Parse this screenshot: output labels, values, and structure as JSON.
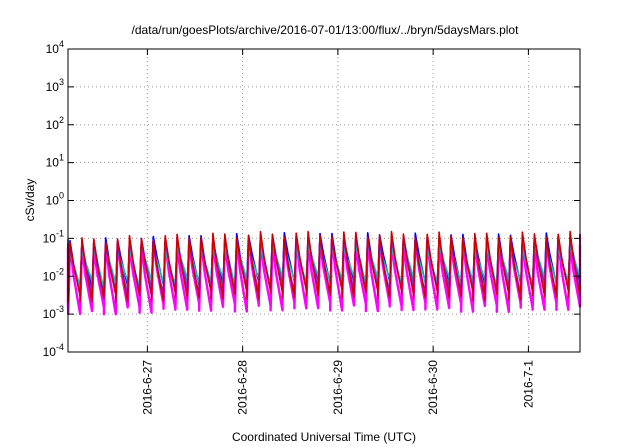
{
  "chart_data": {
    "type": "line",
    "title": "/data/run/goesPlots/archive/2016-07-01/13:00/flux/../bryn/5daysMars.plot",
    "xlabel": "Coordinated Universal Time (UTC)",
    "ylabel": "cSv/day",
    "yscale": "log",
    "ylim": [
      0.0001,
      10000
    ],
    "xlim": [
      "2016-06-26T04:00",
      "2016-07-01T13:00"
    ],
    "x_ticks": [
      "2016-6-27",
      "2016-6-28",
      "2016-6-29",
      "2016-6-30",
      "2016-7-1"
    ],
    "y_ticks": [
      {
        "base": "10",
        "exp": "-4"
      },
      {
        "base": "10",
        "exp": "-3"
      },
      {
        "base": "10",
        "exp": "-2"
      },
      {
        "base": "10",
        "exp": "-1"
      },
      {
        "base": "10",
        "exp": "0"
      },
      {
        "base": "10",
        "exp": "1"
      },
      {
        "base": "10",
        "exp": "2"
      },
      {
        "base": "10",
        "exp": "3"
      },
      {
        "base": "10",
        "exp": "4"
      }
    ],
    "grid": true,
    "legend": "none",
    "pattern": {
      "period_hours": 3,
      "first_peak": "2016-06-26T04:30",
      "description_of_waveform": "sawtooth: sharp rise to peak then decay to minimum within each period"
    },
    "series": [
      {
        "color": "#ff00ff",
        "peak_values": [
          0.055,
          0.075,
          0.08,
          0.08,
          0.07,
          0.075
        ],
        "min_values": [
          0.0012,
          0.0015,
          0.0016,
          0.0016,
          0.0015,
          0.0016
        ]
      },
      {
        "color": "#0000ff",
        "peak_values": [
          0.08,
          0.1,
          0.12,
          0.12,
          0.11,
          0.12
        ],
        "min_values": [
          0.004,
          0.005,
          0.006,
          0.006,
          0.005,
          0.006
        ]
      },
      {
        "color": "#00c8c8",
        "peak_values": [
          0.05,
          0.06,
          0.065,
          0.065,
          0.06,
          0.065
        ],
        "min_values": [
          0.006,
          0.007,
          0.008,
          0.008,
          0.007,
          0.008
        ]
      },
      {
        "color": "#8a2be2",
        "peak_values": [
          0.07,
          0.09,
          0.1,
          0.1,
          0.09,
          0.1
        ],
        "min_values": [
          0.003,
          0.004,
          0.0045,
          0.0045,
          0.004,
          0.0045
        ]
      },
      {
        "color": "#cc0000",
        "peak_values": [
          0.085,
          0.11,
          0.13,
          0.13,
          0.12,
          0.13
        ],
        "min_values": [
          0.0025,
          0.003,
          0.0035,
          0.0035,
          0.003,
          0.0035
        ]
      }
    ]
  }
}
